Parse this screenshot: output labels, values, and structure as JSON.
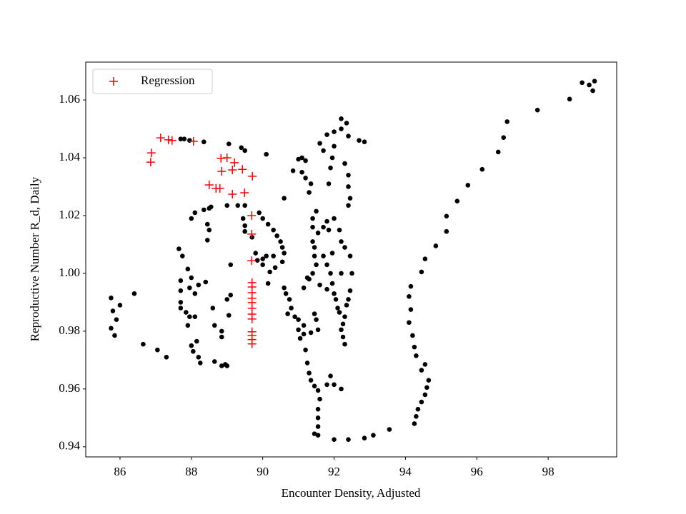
{
  "chart_data": {
    "type": "scatter",
    "xlabel": "Encounter Density, Adjusted",
    "ylabel": "Reproductive Number R_d, Daily",
    "xlim": [
      85.04,
      99.92
    ],
    "ylim": [
      0.9365,
      1.0731
    ],
    "xticks": [
      86,
      88,
      90,
      92,
      94,
      96,
      98
    ],
    "yticks": [
      0.94,
      0.96,
      0.98,
      {
        "value": 1,
        "label": "1.00"
      },
      1.02,
      1.04,
      1.06
    ],
    "legend": "upper left",
    "series": [
      {
        "color": "#000000",
        "marker": "o",
        "x": [
          85.75,
          85.8,
          85.75,
          85.85,
          85.9,
          86.0,
          86.4,
          86.65,
          87.05,
          87.3,
          87.7,
          87.8,
          87.95,
          88.35,
          87.65,
          87.75,
          87.9,
          88.0,
          87.7,
          87.7,
          87.95,
          88.2,
          88.1,
          87.7,
          87.7,
          87.85,
          87.95,
          88.1,
          87.9,
          88.0,
          88.05,
          88.15,
          88.2,
          88.25,
          88.65,
          88.85,
          88.95,
          89.0,
          88.4,
          88.6,
          88.65,
          88.85,
          88.85,
          89.05,
          89.1,
          89.0,
          89.1,
          88.0,
          88.1,
          88.35,
          88.55,
          88.5,
          88.45,
          88.5,
          88.45,
          89.0,
          89.3,
          89.5,
          89.45,
          89.5,
          89.5,
          89.7,
          89.8,
          89.85,
          90.0,
          90.15,
          90.6,
          90.1,
          89.4,
          89.5,
          89.05,
          89.9,
          90.0,
          90.15,
          90.3,
          90.4,
          90.5,
          90.55,
          90.6,
          90.55,
          90.35,
          90.2,
          90.0,
          90.1,
          90.3,
          90.6,
          90.65,
          90.75,
          90.8,
          90.7,
          90.9,
          91.0,
          91.0,
          91.05,
          91.2,
          91.25,
          91.3,
          91.35,
          91.45,
          91.6,
          91.55,
          91.8,
          91.9,
          92.0,
          92.2,
          91.55,
          91.55,
          91.55,
          91.55,
          91.45,
          92.0,
          92.4,
          92.85,
          93.1,
          93.55,
          91.0,
          91.1,
          90.85,
          91.2,
          91.1,
          91.2,
          91.3,
          91.35,
          91.6,
          91.7,
          91.8,
          92.0,
          92.2,
          92.35,
          92.2,
          92.4,
          92.7,
          92.85,
          92.0,
          91.95,
          91.9,
          91.85,
          92.3,
          92.4,
          92.4,
          92.45,
          92.4,
          91.5,
          91.4,
          91.4,
          91.55,
          91.7,
          91.8,
          91.85,
          92.0,
          92.15,
          92.2,
          92.3,
          92.45,
          92.5,
          92.45,
          92.4,
          92.35,
          92.3,
          92.25,
          92.2,
          92.25,
          92.3,
          91.45,
          91.5,
          91.4,
          91.3,
          91.15,
          91.25,
          91.7,
          91.8,
          91.9,
          91.95,
          92.0,
          92.05,
          92.1,
          92.15,
          91.8,
          91.6,
          91.45,
          91.5,
          91.55,
          91.35,
          91.15,
          91.15,
          92.2,
          91.95,
          91.4,
          91.45,
          94.15,
          94.1,
          94.15,
          94.1,
          94.2,
          94.25,
          94.3,
          94.45,
          94.55,
          94.65,
          94.6,
          94.55,
          94.45,
          94.35,
          94.3,
          94.25,
          94.45,
          94.55,
          94.85,
          95.15,
          95.15,
          95.45,
          95.75,
          96.15,
          96.6,
          96.75,
          96.85,
          97.7,
          98.6,
          98.95,
          99.15,
          99.25,
          99.3
        ],
        "values": [
          0.9915,
          0.987,
          0.981,
          0.9785,
          0.984,
          0.989,
          0.993,
          0.9755,
          0.9735,
          0.971,
          1.0465,
          1.0465,
          1.046,
          1.0455,
          1.0085,
          1.006,
          1.0015,
          0.9985,
          0.9975,
          0.994,
          0.995,
          0.996,
          0.993,
          0.99,
          0.988,
          0.9865,
          0.985,
          0.985,
          0.982,
          0.975,
          0.973,
          0.9765,
          0.971,
          0.969,
          0.9695,
          0.968,
          0.9685,
          0.968,
          0.997,
          0.988,
          0.982,
          0.98,
          0.978,
          0.9855,
          0.9925,
          0.991,
          1.003,
          1.019,
          1.021,
          1.022,
          1.023,
          1.0225,
          1.017,
          1.015,
          1.0115,
          1.0235,
          1.0235,
          1.0235,
          1.019,
          1.0165,
          1.0145,
          1.0125,
          1.007,
          1.0045,
          1.003,
          0.9965,
          1.026,
          1.0412,
          1.0435,
          1.0425,
          1.0448,
          1.021,
          1.019,
          1.017,
          1.015,
          1.013,
          1.011,
          1.009,
          1.007,
          1.004,
          1.002,
          1.0005,
          1.005,
          1.006,
          1.006,
          0.995,
          0.993,
          0.991,
          0.988,
          0.986,
          0.985,
          0.984,
          0.9805,
          0.9775,
          0.9735,
          0.969,
          0.9655,
          0.963,
          0.961,
          0.9565,
          0.9595,
          0.9615,
          0.9645,
          0.9615,
          0.96,
          0.953,
          0.95,
          0.947,
          0.944,
          0.9445,
          0.9425,
          0.9425,
          0.943,
          0.944,
          0.946,
          1.0395,
          1.04,
          1.0355,
          1.039,
          1.035,
          1.033,
          1.028,
          1.031,
          1.045,
          1.0425,
          1.048,
          1.049,
          1.0535,
          1.052,
          1.05,
          1.0475,
          1.046,
          1.0455,
          1.044,
          1.04,
          1.0365,
          1.031,
          1.038,
          1.034,
          1.03,
          1.026,
          1.0235,
          1.0215,
          1.019,
          1.016,
          1.014,
          1.016,
          1.018,
          1.015,
          1.019,
          1.015,
          1.011,
          1.009,
          1.006,
          1.0,
          0.994,
          0.991,
          0.989,
          0.985,
          0.9825,
          0.9805,
          0.978,
          0.9755,
          1.006,
          1.003,
          1.0,
          0.998,
          0.995,
          0.9985,
          1.006,
          1.003,
          1.0,
          0.9965,
          0.993,
          0.991,
          0.988,
          0.9865,
          0.9945,
          0.996,
          0.986,
          0.984,
          0.9805,
          0.9795,
          0.979,
          0.982,
          1.0,
          1.007,
          1.011,
          1.009,
          0.9955,
          0.992,
          0.9875,
          0.983,
          0.9785,
          0.9745,
          0.9715,
          0.9665,
          0.9685,
          0.963,
          0.9605,
          0.958,
          0.9555,
          0.953,
          0.9505,
          0.948,
          1.0005,
          1.005,
          1.0095,
          1.0145,
          1.0198,
          1.025,
          1.0305,
          1.036,
          1.042,
          1.047,
          1.0525,
          1.0565,
          1.0603,
          1.066,
          1.0652,
          1.0632,
          1.0665
        ]
      },
      {
        "name": "Regression",
        "color": "#ff0000",
        "marker": "+",
        "x": [
          87.14,
          86.88,
          86.86,
          87.36,
          87.46,
          88.06,
          88.83,
          89.0,
          89.21,
          89.15,
          88.85,
          89.43,
          89.71,
          88.5,
          88.69,
          88.8,
          89.15,
          89.49,
          89.69,
          89.69,
          89.69,
          89.7,
          89.7,
          89.7,
          89.7,
          89.7,
          89.7,
          89.7,
          89.7,
          89.7,
          89.7,
          89.7,
          89.7
        ],
        "values": [
          1.0469,
          1.0417,
          1.0385,
          1.0462,
          1.046,
          1.0457,
          1.0398,
          1.04,
          1.0383,
          1.0358,
          1.0353,
          1.036,
          1.0336,
          1.0306,
          1.0294,
          1.0294,
          1.0274,
          1.0279,
          1.02,
          1.0136,
          1.0044,
          0.9968,
          0.9953,
          0.9933,
          0.9914,
          0.9899,
          0.9879,
          0.9859,
          0.9842,
          0.9798,
          0.9785,
          0.9771,
          0.9756
        ]
      }
    ]
  }
}
